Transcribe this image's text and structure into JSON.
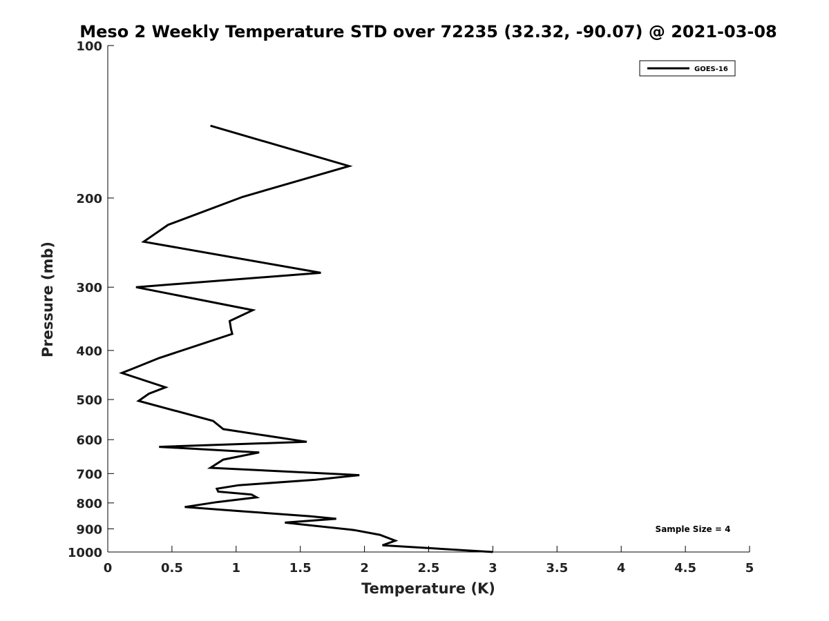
{
  "chart_data": {
    "type": "line",
    "title": "Meso 2 Weekly Temperature STD over 72235 (32.32, -90.07) @ 2021-03-08",
    "xlabel": "Temperature (K)",
    "ylabel": "Pressure (mb)",
    "xlim": [
      0,
      5
    ],
    "ylim": [
      100,
      1000
    ],
    "yscale": "log",
    "y_reversed": true,
    "x_ticks": [
      "0",
      "0.5",
      "1",
      "1.5",
      "2",
      "2.5",
      "3",
      "3.5",
      "4",
      "4.5",
      "5"
    ],
    "y_ticks": [
      "100",
      "200",
      "300",
      "400",
      "500",
      "600",
      "700",
      "800",
      "900",
      "1000"
    ],
    "grid": false,
    "legend_position": "top-right",
    "series": [
      {
        "name": "GOES-16",
        "color": "#000000",
        "x": [
          3.0,
          2.14,
          2.24,
          2.12,
          1.92,
          1.38,
          1.78,
          1.58,
          1.02,
          0.6,
          0.85,
          1.16,
          1.12,
          0.86,
          0.85,
          1.02,
          1.62,
          1.96,
          0.8,
          0.9,
          1.18,
          0.4,
          1.55,
          0.9,
          0.82,
          0.24,
          0.32,
          0.45,
          0.11,
          0.2,
          0.4,
          0.97,
          0.96,
          0.95,
          1.13,
          0.22,
          1.66,
          0.28,
          0.47,
          1.05,
          1.88,
          0.8
        ],
        "y": [
          1000,
          970,
          950,
          925,
          905,
          875,
          860,
          850,
          830,
          815,
          797,
          780,
          770,
          760,
          750,
          738,
          720,
          705,
          682,
          657,
          636,
          620,
          606,
          572,
          551,
          503,
          487,
          473,
          443,
          434,
          414,
          371,
          363,
          350,
          333,
          300,
          281,
          244,
          226,
          199,
          173,
          144
        ]
      }
    ],
    "annotations": [
      "Sample Size = 4"
    ]
  }
}
